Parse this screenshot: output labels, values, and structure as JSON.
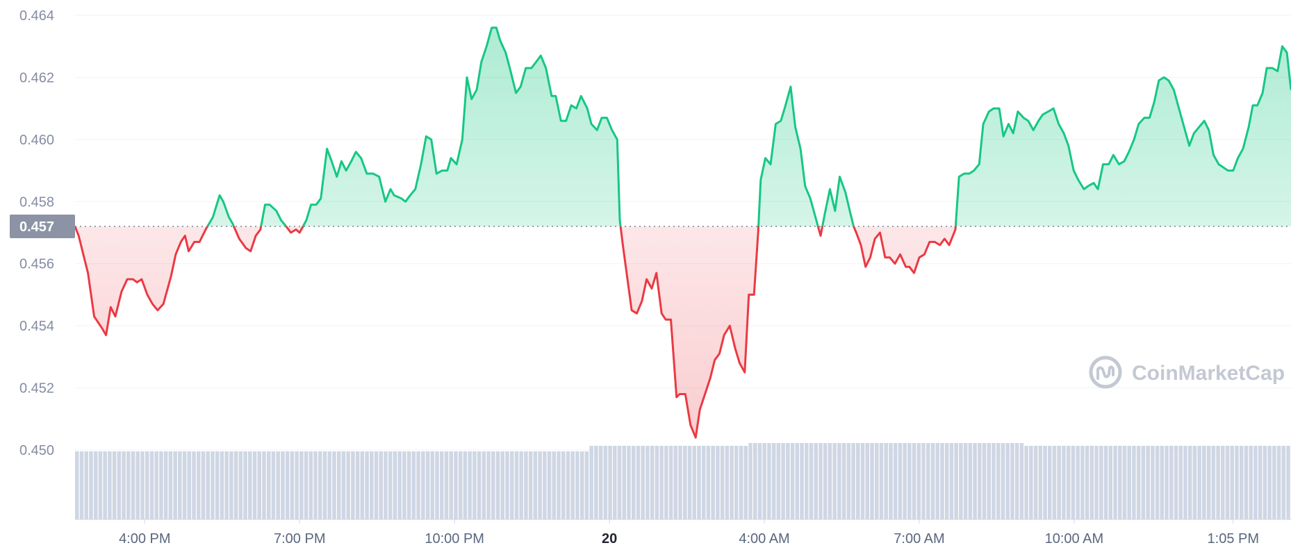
{
  "watermark": {
    "text": "CoinMarketCap",
    "icon": "coinmarketcap-logo-icon"
  },
  "colors": {
    "up": "#16c784",
    "down": "#ea3943",
    "volume": "#cfd6e4",
    "grid": "#eff2f5",
    "baseline_label_bg": "#8b93a5"
  },
  "chart_data": {
    "type": "line",
    "title": "",
    "xlabel": "",
    "ylabel": "",
    "ylim": [
      0.45,
      0.464
    ],
    "yticks": [
      "0.450",
      "0.452",
      "0.454",
      "0.456",
      "0.458",
      "0.460",
      "0.462",
      "0.464"
    ],
    "baseline": {
      "value": 0.4572,
      "label": "0.457"
    },
    "x_tick_labels": [
      {
        "label": "4:00 PM",
        "t": 0.5,
        "bold": false
      },
      {
        "label": "7:00 PM",
        "t": 3.5,
        "bold": false
      },
      {
        "label": "10:00 PM",
        "t": 6.5,
        "bold": false
      },
      {
        "label": "20",
        "t": 9.5,
        "bold": true
      },
      {
        "label": "4:00 AM",
        "t": 12.5,
        "bold": false
      },
      {
        "label": "7:00 AM",
        "t": 15.5,
        "bold": false
      },
      {
        "label": "10:00 AM",
        "t": 18.5,
        "bold": false
      },
      {
        "label": "1:05 PM",
        "t": 21.58,
        "bold": false
      }
    ],
    "x_range_hours": [
      -0.85,
      22.7
    ],
    "series": [
      {
        "values": [
          [
            -0.85,
            0.4572
          ],
          [
            -0.78,
            0.4569
          ],
          [
            -0.6,
            0.4557
          ],
          [
            -0.48,
            0.4543
          ],
          [
            -0.32,
            0.4539
          ],
          [
            -0.25,
            0.4537
          ],
          [
            -0.16,
            0.4546
          ],
          [
            -0.07,
            0.4543
          ],
          [
            0.05,
            0.4551
          ],
          [
            0.16,
            0.4555
          ],
          [
            0.27,
            0.4555
          ],
          [
            0.35,
            0.4554
          ],
          [
            0.44,
            0.4555
          ],
          [
            0.55,
            0.455
          ],
          [
            0.65,
            0.4547
          ],
          [
            0.75,
            0.4545
          ],
          [
            0.86,
            0.4547
          ],
          [
            1.01,
            0.4556
          ],
          [
            1.1,
            0.4563
          ],
          [
            1.2,
            0.4567
          ],
          [
            1.28,
            0.4569
          ],
          [
            1.35,
            0.4564
          ],
          [
            1.46,
            0.4567
          ],
          [
            1.56,
            0.4567
          ],
          [
            1.68,
            0.4571
          ],
          [
            1.82,
            0.4575
          ],
          [
            1.95,
            0.4582
          ],
          [
            2.02,
            0.458
          ],
          [
            2.13,
            0.4575
          ],
          [
            2.2,
            0.4573
          ],
          [
            2.33,
            0.4568
          ],
          [
            2.46,
            0.4565
          ],
          [
            2.55,
            0.4564
          ],
          [
            2.65,
            0.4569
          ],
          [
            2.74,
            0.4571
          ],
          [
            2.83,
            0.4579
          ],
          [
            2.92,
            0.4579
          ],
          [
            3.05,
            0.4577
          ],
          [
            3.14,
            0.4574
          ],
          [
            3.24,
            0.4572
          ],
          [
            3.33,
            0.457
          ],
          [
            3.43,
            0.4571
          ],
          [
            3.5,
            0.457
          ],
          [
            3.63,
            0.4574
          ],
          [
            3.72,
            0.4579
          ],
          [
            3.82,
            0.4579
          ],
          [
            3.91,
            0.4581
          ],
          [
            4.03,
            0.4597
          ],
          [
            4.12,
            0.4593
          ],
          [
            4.22,
            0.4588
          ],
          [
            4.31,
            0.4593
          ],
          [
            4.4,
            0.459
          ],
          [
            4.5,
            0.4593
          ],
          [
            4.59,
            0.4596
          ],
          [
            4.69,
            0.4594
          ],
          [
            4.8,
            0.4589
          ],
          [
            4.92,
            0.4589
          ],
          [
            5.04,
            0.4588
          ],
          [
            5.16,
            0.458
          ],
          [
            5.26,
            0.4584
          ],
          [
            5.33,
            0.4582
          ],
          [
            5.47,
            0.4581
          ],
          [
            5.55,
            0.458
          ],
          [
            5.64,
            0.4582
          ],
          [
            5.74,
            0.4584
          ],
          [
            5.85,
            0.4592
          ],
          [
            5.95,
            0.4601
          ],
          [
            6.05,
            0.46
          ],
          [
            6.15,
            0.4589
          ],
          [
            6.26,
            0.459
          ],
          [
            6.36,
            0.459
          ],
          [
            6.43,
            0.4594
          ],
          [
            6.54,
            0.4592
          ],
          [
            6.65,
            0.46
          ],
          [
            6.74,
            0.462
          ],
          [
            6.83,
            0.4613
          ],
          [
            6.93,
            0.4616
          ],
          [
            7.02,
            0.4625
          ],
          [
            7.12,
            0.463
          ],
          [
            7.22,
            0.4636
          ],
          [
            7.31,
            0.4636
          ],
          [
            7.38,
            0.4632
          ],
          [
            7.49,
            0.4628
          ],
          [
            7.57,
            0.4623
          ],
          [
            7.69,
            0.4615
          ],
          [
            7.78,
            0.4617
          ],
          [
            7.88,
            0.4623
          ],
          [
            7.99,
            0.4623
          ],
          [
            8.08,
            0.4625
          ],
          [
            8.17,
            0.4627
          ],
          [
            8.27,
            0.4623
          ],
          [
            8.38,
            0.4614
          ],
          [
            8.46,
            0.4614
          ],
          [
            8.56,
            0.4606
          ],
          [
            8.66,
            0.4606
          ],
          [
            8.76,
            0.4611
          ],
          [
            8.86,
            0.461
          ],
          [
            8.95,
            0.4614
          ],
          [
            9.07,
            0.461
          ],
          [
            9.15,
            0.4605
          ],
          [
            9.26,
            0.4603
          ],
          [
            9.35,
            0.4607
          ],
          [
            9.45,
            0.4607
          ],
          [
            9.55,
            0.4603
          ],
          [
            9.65,
            0.46
          ],
          [
            9.7,
            0.4574
          ],
          [
            9.76,
            0.4566
          ],
          [
            9.93,
            0.4545
          ],
          [
            10.03,
            0.4544
          ],
          [
            10.13,
            0.4548
          ],
          [
            10.22,
            0.4555
          ],
          [
            10.32,
            0.4552
          ],
          [
            10.41,
            0.4557
          ],
          [
            10.51,
            0.4544
          ],
          [
            10.59,
            0.4542
          ],
          [
            10.69,
            0.4542
          ],
          [
            10.8,
            0.4517
          ],
          [
            10.86,
            0.4518
          ],
          [
            10.97,
            0.4518
          ],
          [
            11.07,
            0.4508
          ],
          [
            11.17,
            0.4504
          ],
          [
            11.25,
            0.4513
          ],
          [
            11.45,
            0.4523
          ],
          [
            11.54,
            0.4529
          ],
          [
            11.63,
            0.4531
          ],
          [
            11.72,
            0.4537
          ],
          [
            11.83,
            0.454
          ],
          [
            11.93,
            0.4533
          ],
          [
            12.02,
            0.4528
          ],
          [
            12.12,
            0.4525
          ],
          [
            12.2,
            0.455
          ],
          [
            12.3,
            0.455
          ],
          [
            12.38,
            0.457
          ],
          [
            12.43,
            0.4587
          ],
          [
            12.52,
            0.4594
          ],
          [
            12.62,
            0.4592
          ],
          [
            12.72,
            0.4605
          ],
          [
            12.82,
            0.4606
          ],
          [
            12.91,
            0.4611
          ],
          [
            13.01,
            0.4617
          ],
          [
            13.1,
            0.4604
          ],
          [
            13.2,
            0.4597
          ],
          [
            13.29,
            0.4585
          ],
          [
            13.39,
            0.4581
          ],
          [
            13.49,
            0.4575
          ],
          [
            13.59,
            0.4569
          ],
          [
            13.67,
            0.4576
          ],
          [
            13.77,
            0.4584
          ],
          [
            13.87,
            0.4577
          ],
          [
            13.96,
            0.4588
          ],
          [
            14.07,
            0.4583
          ],
          [
            14.17,
            0.4576
          ],
          [
            14.23,
            0.4572
          ],
          [
            14.28,
            0.457
          ],
          [
            14.37,
            0.4566
          ],
          [
            14.46,
            0.4559
          ],
          [
            14.55,
            0.4562
          ],
          [
            14.64,
            0.4568
          ],
          [
            14.74,
            0.457
          ],
          [
            14.84,
            0.4562
          ],
          [
            14.93,
            0.4562
          ],
          [
            15.03,
            0.456
          ],
          [
            15.13,
            0.4563
          ],
          [
            15.24,
            0.4559
          ],
          [
            15.31,
            0.4559
          ],
          [
            15.4,
            0.4557
          ],
          [
            15.5,
            0.4562
          ],
          [
            15.6,
            0.4563
          ],
          [
            15.7,
            0.4567
          ],
          [
            15.8,
            0.4567
          ],
          [
            15.9,
            0.4566
          ],
          [
            15.99,
            0.4568
          ],
          [
            16.08,
            0.4566
          ],
          [
            16.2,
            0.4571
          ],
          [
            16.27,
            0.4588
          ],
          [
            16.37,
            0.4589
          ],
          [
            16.47,
            0.4589
          ],
          [
            16.56,
            0.459
          ],
          [
            16.66,
            0.4592
          ],
          [
            16.74,
            0.4605
          ],
          [
            16.85,
            0.4609
          ],
          [
            16.94,
            0.461
          ],
          [
            17.05,
            0.461
          ],
          [
            17.13,
            0.4601
          ],
          [
            17.23,
            0.4605
          ],
          [
            17.32,
            0.4602
          ],
          [
            17.41,
            0.4609
          ],
          [
            17.52,
            0.4607
          ],
          [
            17.61,
            0.4606
          ],
          [
            17.71,
            0.4603
          ],
          [
            17.81,
            0.4606
          ],
          [
            17.89,
            0.4608
          ],
          [
            18.0,
            0.4609
          ],
          [
            18.1,
            0.461
          ],
          [
            18.2,
            0.4605
          ],
          [
            18.3,
            0.4602
          ],
          [
            18.39,
            0.4598
          ],
          [
            18.49,
            0.459
          ],
          [
            18.58,
            0.4587
          ],
          [
            18.69,
            0.4584
          ],
          [
            18.77,
            0.4585
          ],
          [
            18.88,
            0.4586
          ],
          [
            18.96,
            0.4584
          ],
          [
            19.06,
            0.4592
          ],
          [
            19.17,
            0.4592
          ],
          [
            19.26,
            0.4595
          ],
          [
            19.37,
            0.4592
          ],
          [
            19.47,
            0.4593
          ],
          [
            19.56,
            0.4596
          ],
          [
            19.66,
            0.46
          ],
          [
            19.75,
            0.4605
          ],
          [
            19.86,
            0.4607
          ],
          [
            19.96,
            0.4607
          ],
          [
            20.05,
            0.4612
          ],
          [
            20.14,
            0.4619
          ],
          [
            20.24,
            0.462
          ],
          [
            20.33,
            0.4619
          ],
          [
            20.43,
            0.4616
          ],
          [
            20.53,
            0.461
          ],
          [
            20.63,
            0.4604
          ],
          [
            20.73,
            0.4598
          ],
          [
            20.82,
            0.4602
          ],
          [
            20.92,
            0.4604
          ],
          [
            21.02,
            0.4606
          ],
          [
            21.11,
            0.4603
          ],
          [
            21.2,
            0.4595
          ],
          [
            21.3,
            0.4592
          ],
          [
            21.39,
            0.4591
          ],
          [
            21.48,
            0.459
          ],
          [
            21.58,
            0.459
          ],
          [
            21.67,
            0.4594
          ],
          [
            21.77,
            0.4597
          ],
          [
            21.88,
            0.4604
          ],
          [
            21.96,
            0.4611
          ],
          [
            22.05,
            0.4611
          ],
          [
            22.15,
            0.4615
          ],
          [
            22.23,
            0.4623
          ],
          [
            22.34,
            0.4623
          ],
          [
            22.44,
            0.4622
          ],
          [
            22.53,
            0.463
          ]
        ]
      },
      {
        "values": [
          [
            22.62,
            0.4628
          ],
          [
            22.7,
            0.4616
          ]
        ]
      }
    ],
    "volume_scale": [
      0.448,
      0.4502
    ],
    "volume_bars": []
  }
}
